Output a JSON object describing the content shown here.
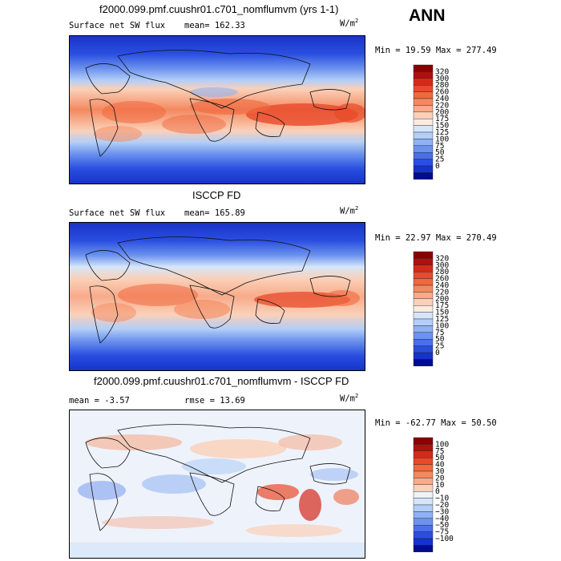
{
  "season": "ANN",
  "panels": [
    {
      "title": "f2000.099.pmf.cuushr01.c701_nomflumvm (yrs 1-1)",
      "field_label": "Surface net SW flux",
      "stat_text": "mean= 162.33",
      "rmse_text": "",
      "units": "W/m",
      "units_exp": "2",
      "minmax_text": "Min =  19.59 Max = 277.49",
      "colorbar": {
        "labels": [
          "320",
          "300",
          "280",
          "260",
          "240",
          "220",
          "200",
          "175",
          "150",
          "125",
          "100",
          "75",
          "50",
          "25",
          "0"
        ],
        "colors": [
          "#8b0000",
          "#b01010",
          "#d42a1a",
          "#e84a2a",
          "#f0683e",
          "#f3895f",
          "#f7ab8a",
          "#fbd0b8",
          "#fdebe0",
          "#d6e6fa",
          "#b3cef7",
          "#8eb2f3",
          "#6b92ee",
          "#4a70e8",
          "#2a4ee0",
          "#1533cc",
          "#000c8f"
        ]
      },
      "image_description": "global map of modelled surface net shortwave flux"
    },
    {
      "title": "ISCCP FD",
      "field_label": "Surface net SW flux",
      "stat_text": "mean= 165.89",
      "rmse_text": "",
      "units": "W/m",
      "units_exp": "2",
      "minmax_text": "Min =  22.97 Max = 270.49",
      "colorbar": {
        "labels": [
          "320",
          "300",
          "280",
          "260",
          "240",
          "220",
          "200",
          "175",
          "150",
          "125",
          "100",
          "75",
          "50",
          "25",
          "0"
        ],
        "colors": [
          "#8b0000",
          "#b01010",
          "#d42a1a",
          "#e84a2a",
          "#f0683e",
          "#f3895f",
          "#f7ab8a",
          "#fbd0b8",
          "#fdebe0",
          "#d6e6fa",
          "#b3cef7",
          "#8eb2f3",
          "#6b92ee",
          "#4a70e8",
          "#2a4ee0",
          "#1533cc",
          "#000c8f"
        ]
      },
      "image_description": "global map of observed surface net shortwave flux"
    },
    {
      "title": "f2000.099.pmf.cuushr01.c701_nomflumvm - ISCCP FD",
      "field_label": "",
      "stat_text": "mean =  -3.57",
      "rmse_text": "rmse =  13.69",
      "units": "W/m",
      "units_exp": "2",
      "minmax_text": "Min = -62.77 Max =  50.50",
      "colorbar": {
        "labels": [
          "100",
          "75",
          "50",
          "40",
          "30",
          "20",
          "10",
          "0",
          "−10",
          "−20",
          "−30",
          "−40",
          "−50",
          "−75",
          "−100"
        ],
        "colors": [
          "#8b0000",
          "#b01010",
          "#d42a1a",
          "#e84a2a",
          "#f0683e",
          "#f3895f",
          "#f7ab8a",
          "#fbd0b8",
          "#eef2fb",
          "#d6e6fa",
          "#b3cef7",
          "#8eb2f3",
          "#6b92ee",
          "#4a70e8",
          "#2a4ee0",
          "#1533cc",
          "#000c8f"
        ]
      },
      "image_description": "global map of model minus observation difference"
    }
  ],
  "chart_data": [
    {
      "type": "heatmap",
      "title": "f2000.099.pmf.cuushr01.c701_nomflumvm (yrs 1-1)",
      "field": "Surface net SW flux",
      "units": "W/m2",
      "mean": 162.33,
      "min": 19.59,
      "max": 277.49,
      "contour_levels": [
        0,
        25,
        50,
        75,
        100,
        125,
        150,
        175,
        200,
        220,
        240,
        260,
        280,
        300,
        320
      ]
    },
    {
      "type": "heatmap",
      "title": "ISCCP FD",
      "field": "Surface net SW flux",
      "units": "W/m2",
      "mean": 165.89,
      "min": 22.97,
      "max": 270.49,
      "contour_levels": [
        0,
        25,
        50,
        75,
        100,
        125,
        150,
        175,
        200,
        220,
        240,
        260,
        280,
        300,
        320
      ]
    },
    {
      "type": "heatmap",
      "title": "f2000.099.pmf.cuushr01.c701_nomflumvm - ISCCP FD",
      "units": "W/m2",
      "mean": -3.57,
      "rmse": 13.69,
      "min": -62.77,
      "max": 50.5,
      "contour_levels": [
        -100,
        -75,
        -50,
        -40,
        -30,
        -20,
        -10,
        0,
        10,
        20,
        30,
        40,
        50,
        75,
        100
      ]
    }
  ]
}
